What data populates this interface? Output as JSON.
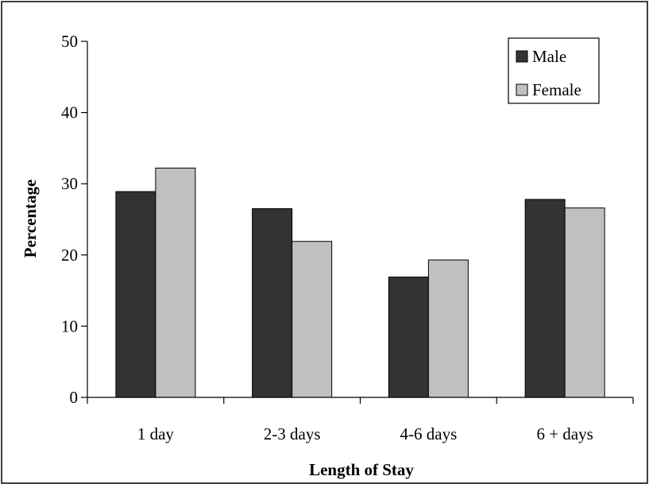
{
  "chart_data": {
    "type": "bar",
    "title": "",
    "xlabel": "Length of Stay",
    "ylabel": "Percentage",
    "categories": [
      "1 day",
      "2-3 days",
      "4-6 days",
      "6 + days"
    ],
    "series": [
      {
        "name": "Male",
        "color": "#333333",
        "values": [
          28.9,
          26.5,
          16.9,
          27.8
        ]
      },
      {
        "name": "Female",
        "color": "#c0c0c0",
        "values": [
          32.2,
          21.9,
          19.3,
          26.6
        ]
      }
    ],
    "ylim": [
      0,
      50
    ],
    "yticks": [
      0,
      10,
      20,
      30,
      40,
      50
    ],
    "grid": false,
    "legend_position": "top-right"
  }
}
